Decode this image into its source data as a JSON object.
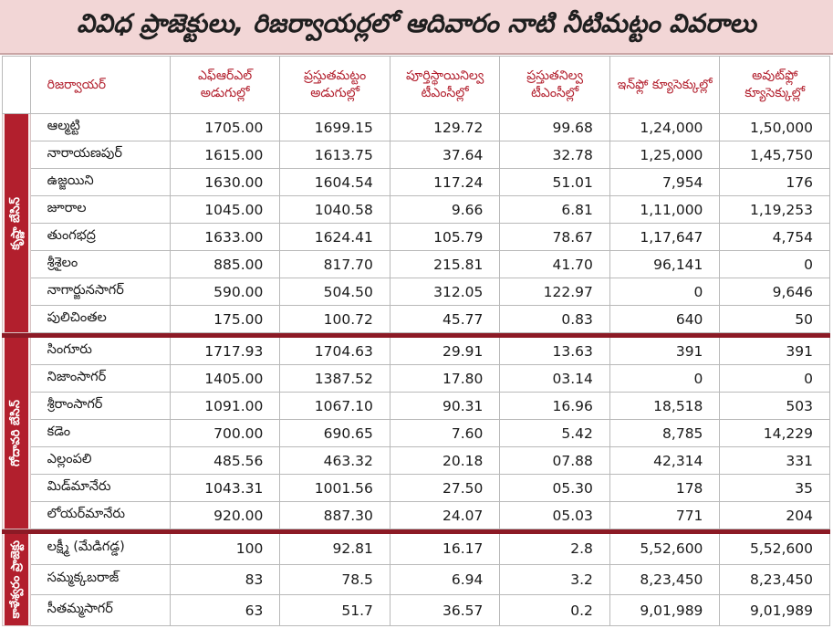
{
  "title": "వివిధ ప్రాజెక్టులు, రిజర్వాయర్లలో ఆదివారం నాటి నీటిమట్టం వివరాలు",
  "headers": [
    "రిజర్వాయర్",
    "ఎఫ్‌ఆర్‌ఎల్ అడుగుల్లో",
    "ప్రస్తుతమట్టం అడుగుల్లో",
    "పూర్తిస్థాయినిల్వ టీఎంసీల్లో",
    "ప్రస్తుతనిల్వ టీఎంసీల్లో",
    "ఇన్‌ఫ్లో క్యూసెక్కుల్లో",
    "అవుట్‌ఫ్లో క్యూసెక్కుల్లో"
  ],
  "groups": [
    {
      "label": "కృష్ణా బేసిన్",
      "rows": [
        [
          "ఆల్మట్టి",
          "1705.00",
          "1699.15",
          "129.72",
          "99.68",
          "1,24,000",
          "1,50,000"
        ],
        [
          "నారాయణపుర్",
          "1615.00",
          "1613.75",
          "37.64",
          "32.78",
          "1,25,000",
          "1,45,750"
        ],
        [
          "ఉజ్జయిని",
          "1630.00",
          "1604.54",
          "117.24",
          "51.01",
          "7,954",
          "176"
        ],
        [
          "జూరాల",
          "1045.00",
          "1040.58",
          "9.66",
          "6.81",
          "1,11,000",
          "1,19,253"
        ],
        [
          "తుంగభద్ర",
          "1633.00",
          "1624.41",
          "105.79",
          "78.67",
          "1,17,647",
          "4,754"
        ],
        [
          "శ్రీశైలం",
          "885.00",
          "817.70",
          "215.81",
          "41.70",
          "96,141",
          "0"
        ],
        [
          "నాగార్జునసాగర్",
          "590.00",
          "504.50",
          "312.05",
          "122.97",
          "0",
          "9,646"
        ],
        [
          "పులిచింతల",
          "175.00",
          "100.72",
          "45.77",
          "0.83",
          "640",
          "50"
        ]
      ]
    },
    {
      "label": "గోదావరి బేసిన్",
      "rows": [
        [
          "సింగూరు",
          "1717.93",
          "1704.63",
          "29.91",
          "13.63",
          "391",
          "391"
        ],
        [
          "నిజాంసాగర్",
          "1405.00",
          "1387.52",
          "17.80",
          "03.14",
          "0",
          "0"
        ],
        [
          "శ్రీరాంసాగర్",
          "1091.00",
          "1067.10",
          "90.31",
          "16.96",
          "18,518",
          "503"
        ],
        [
          "కడెం",
          "700.00",
          "690.65",
          "7.60",
          "5.42",
          "8,785",
          "14,229"
        ],
        [
          "ఎల్లంపలి",
          "485.56",
          "463.32",
          "20.18",
          "07.88",
          "42,314",
          "331"
        ],
        [
          "మిడ్‌మానేరు",
          "1043.31",
          "1001.56",
          "27.50",
          "05.30",
          "178",
          "35"
        ],
        [
          "లోయర్‌మానేరు",
          "920.00",
          "887.30",
          "24.07",
          "05.03",
          "771",
          "204"
        ]
      ]
    },
    {
      "label": "కాళేశ్వరం ప్రాజెక్టు",
      "rows": [
        [
          "లక్ష్మీ (మేడిగడ్డ)",
          "100",
          "92.81",
          "16.17",
          "2.8",
          "5,52,600",
          "5,52,600"
        ],
        [
          "సమ్మక్కబరాజ్",
          "83",
          "78.5",
          "6.94",
          "3.2",
          "8,23,450",
          "8,23,450"
        ],
        [
          "సీతమ్మసాగర్",
          "63",
          "51.7",
          "36.57",
          "0.2",
          "9,01,989",
          "9,01,989"
        ]
      ]
    }
  ]
}
